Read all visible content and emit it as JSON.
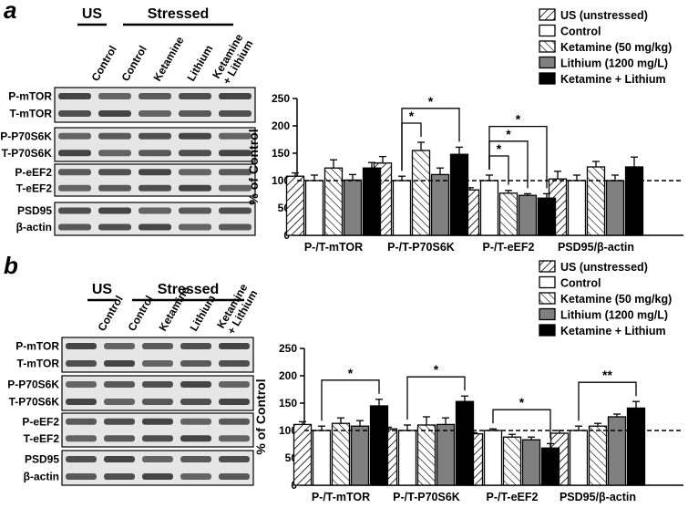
{
  "chart_data": [
    {
      "type": "bar",
      "y_label": "% of Control",
      "categories": [
        "P-/T-mTOR",
        "P-/T-P70S6K",
        "P-/T-eEF2",
        "PSD95/β-actin"
      ],
      "ylim": [
        0,
        250
      ],
      "yticks": [
        0,
        50,
        100,
        150,
        200,
        250
      ],
      "reference_line": 100,
      "series": [
        {
          "name": "US (unstressed)",
          "color": "#ffffff",
          "hatch": "up",
          "values": [
            108,
            132,
            83,
            103
          ],
          "errors": [
            6,
            12,
            4,
            14
          ]
        },
        {
          "name": "Control",
          "color": "#ffffff",
          "hatch": null,
          "values": [
            100,
            100,
            100,
            100
          ],
          "errors": [
            10,
            8,
            10,
            10
          ]
        },
        {
          "name": "Ketamine (50 mg/kg)",
          "color": "#ffffff",
          "hatch": "down",
          "values": [
            123,
            155,
            77,
            125
          ],
          "errors": [
            15,
            15,
            5,
            10
          ]
        },
        {
          "name": "Lithium (1200 mg/L)",
          "color": "#808080",
          "hatch": null,
          "values": [
            101,
            111,
            73,
            100
          ],
          "errors": [
            10,
            12,
            3,
            10
          ]
        },
        {
          "name": "Ketamine + Lithium",
          "color": "#000000",
          "hatch": null,
          "values": [
            123,
            148,
            68,
            125
          ],
          "errors": [
            10,
            13,
            8,
            18
          ]
        }
      ],
      "significance": [
        {
          "category": "P-/T-P70S6K",
          "from": "Control",
          "to": "Ketamine (50 mg/kg)",
          "label": "*"
        },
        {
          "category": "P-/T-P70S6K",
          "from": "Control",
          "to": "Ketamine + Lithium",
          "label": "*"
        },
        {
          "category": "P-/T-eEF2",
          "from": "Control",
          "to": "Ketamine (50 mg/kg)",
          "label": "*"
        },
        {
          "category": "P-/T-eEF2",
          "from": "Control",
          "to": "Lithium (1200 mg/L)",
          "label": "*"
        },
        {
          "category": "P-/T-eEF2",
          "from": "Control",
          "to": "Ketamine + Lithium",
          "label": "*"
        }
      ]
    },
    {
      "type": "bar",
      "y_label": "% of Control",
      "categories": [
        "P-/T-mTOR",
        "P-/T-P70S6K",
        "P-/T-eEF2",
        "PSD95/β-actin"
      ],
      "ylim": [
        0,
        250
      ],
      "yticks": [
        0,
        50,
        100,
        150,
        200,
        250
      ],
      "reference_line": 100,
      "series": [
        {
          "name": "US (unstressed)",
          "color": "#ffffff",
          "hatch": "up",
          "values": [
            111,
            103,
            94,
            95
          ],
          "errors": [
            5,
            3,
            2,
            5
          ]
        },
        {
          "name": "Control",
          "color": "#ffffff",
          "hatch": null,
          "values": [
            100,
            100,
            100,
            100
          ],
          "errors": [
            8,
            10,
            3,
            8
          ]
        },
        {
          "name": "Ketamine (50 mg/kg)",
          "color": "#ffffff",
          "hatch": "down",
          "values": [
            113,
            110,
            88,
            108
          ],
          "errors": [
            10,
            15,
            5,
            5
          ]
        },
        {
          "name": "Lithium (1200 mg/L)",
          "color": "#808080",
          "hatch": null,
          "values": [
            108,
            111,
            83,
            125
          ],
          "errors": [
            10,
            12,
            5,
            5
          ]
        },
        {
          "name": "Ketamine + Lithium",
          "color": "#000000",
          "hatch": null,
          "values": [
            145,
            153,
            68,
            141
          ],
          "errors": [
            12,
            10,
            8,
            12
          ]
        }
      ],
      "significance": [
        {
          "category": "P-/T-mTOR",
          "from": "Control",
          "to": "Ketamine + Lithium",
          "label": "*"
        },
        {
          "category": "P-/T-P70S6K",
          "from": "Control",
          "to": "Ketamine + Lithium",
          "label": "*"
        },
        {
          "category": "P-/T-eEF2",
          "from": "Control",
          "to": "Ketamine + Lithium",
          "label": "*"
        },
        {
          "category": "PSD95/β-actin",
          "from": "Control",
          "to": "Ketamine + Lithium",
          "label": "**"
        }
      ]
    }
  ],
  "panels": [
    {
      "letter": "a",
      "blot": {
        "groups": [
          "US",
          "Stressed"
        ],
        "lanes": [
          [
            "Control"
          ],
          [
            "Control"
          ],
          [
            "Ketamine"
          ],
          [
            "Lithium"
          ],
          [
            "Ketamine",
            "+ Lithium"
          ]
        ],
        "rows": [
          [
            "P-mTOR",
            "T-mTOR"
          ],
          [
            "P-P70S6K",
            "T-P70S6K"
          ],
          [
            "P-eEF2",
            "T-eEF2"
          ],
          [
            "PSD95",
            "β-actin"
          ]
        ]
      }
    },
    {
      "letter": "b",
      "blot": {
        "groups": [
          "US",
          "Stressed"
        ],
        "lanes": [
          [
            "Control"
          ],
          [
            "Control"
          ],
          [
            "Ketamine"
          ],
          [
            "Lithium"
          ],
          [
            "Ketamine",
            "+ Lithium"
          ]
        ],
        "rows": [
          [
            "P-mTOR",
            "T-mTOR"
          ],
          [
            "P-P70S6K",
            "T-P70S6K"
          ],
          [
            "P-eEF2",
            "T-eEF2"
          ],
          [
            "PSD95",
            "β-actin"
          ]
        ]
      }
    }
  ]
}
